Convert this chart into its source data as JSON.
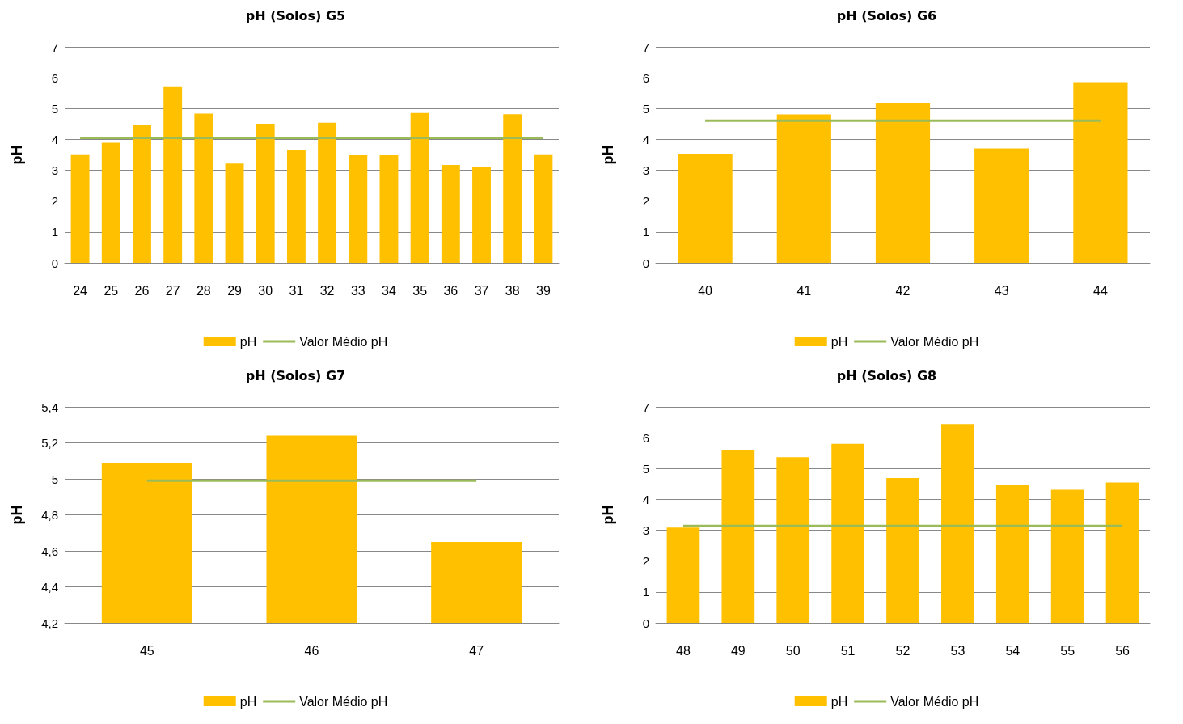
{
  "chart_data": [
    {
      "type": "bar",
      "title": "pH (Solos) G5",
      "ylabel": "pH",
      "categories": [
        "24",
        "25",
        "26",
        "27",
        "28",
        "29",
        "30",
        "31",
        "32",
        "33",
        "34",
        "35",
        "36",
        "37",
        "38",
        "39"
      ],
      "series": [
        {
          "name": "pH",
          "color": "#ffc000",
          "values": [
            3.52,
            3.89,
            4.47,
            5.72,
            4.84,
            3.22,
            4.51,
            3.66,
            4.54,
            3.49,
            3.49,
            4.86,
            3.17,
            3.1,
            4.82,
            3.52
          ]
        },
        {
          "name": "Valor Médio pH",
          "type": "line",
          "color": "#9bbb59",
          "values": [
            4.05,
            4.05,
            4.05,
            4.05,
            4.05,
            4.05,
            4.05,
            4.05,
            4.05,
            4.05,
            4.05,
            4.05,
            4.05,
            4.05,
            4.05,
            4.05
          ]
        }
      ],
      "ylim": [
        0,
        7
      ],
      "yticks": [
        0,
        1,
        2,
        3,
        4,
        5,
        6,
        7
      ],
      "grid": "y",
      "legend": "bottom",
      "marker": "none",
      "line_style": "solid"
    },
    {
      "type": "bar",
      "title": "pH (Solos) G6",
      "ylabel": "pH",
      "categories": [
        "40",
        "41",
        "42",
        "43",
        "44"
      ],
      "series": [
        {
          "name": "pH",
          "color": "#ffc000",
          "values": [
            3.54,
            4.81,
            5.19,
            3.71,
            5.86
          ]
        },
        {
          "name": "Valor Médio pH",
          "type": "line",
          "color": "#9bbb59",
          "values": [
            4.61,
            4.61,
            4.61,
            4.61,
            4.61
          ]
        }
      ],
      "ylim": [
        0,
        7
      ],
      "yticks": [
        0,
        1,
        2,
        3,
        4,
        5,
        6,
        7
      ],
      "grid": "y",
      "legend": "bottom",
      "marker": "none",
      "line_style": "solid"
    },
    {
      "type": "bar",
      "title": "pH (Solos) G7",
      "ylabel": "pH",
      "categories": [
        "45",
        "46",
        "47"
      ],
      "series": [
        {
          "name": "pH",
          "color": "#ffc000",
          "values": [
            5.09,
            5.24,
            4.65
          ]
        },
        {
          "name": "Valor Médio pH",
          "type": "line",
          "color": "#9bbb59",
          "values": [
            4.99,
            4.99,
            4.99
          ]
        }
      ],
      "ylim": [
        4.2,
        5.4
      ],
      "yticks": [
        {
          "value": 4.2,
          "label": "4,2"
        },
        {
          "value": 4.4,
          "label": "4,4"
        },
        {
          "value": 4.6,
          "label": "4,6"
        },
        {
          "value": 4.8,
          "label": "4,8"
        },
        {
          "value": 5,
          "label": "5"
        },
        {
          "value": 5.2,
          "label": "5,2"
        },
        {
          "value": 5.4,
          "label": "5,4"
        }
      ],
      "grid": "y",
      "legend": "bottom",
      "marker": "none",
      "line_style": "solid"
    },
    {
      "type": "bar",
      "title": "pH (Solos) G8",
      "ylabel": "pH",
      "categories": [
        "48",
        "49",
        "50",
        "51",
        "52",
        "53",
        "54",
        "55",
        "56"
      ],
      "series": [
        {
          "name": "pH",
          "color": "#ffc000",
          "values": [
            3.09,
            5.61,
            5.37,
            5.8,
            4.69,
            6.44,
            4.46,
            4.31,
            4.55
          ]
        },
        {
          "name": "Valor Médio pH",
          "type": "line",
          "color": "#9bbb59",
          "values": [
            3.14,
            3.14,
            3.14,
            3.14,
            3.14,
            3.14,
            3.14,
            3.14,
            3.14
          ]
        }
      ],
      "ylim": [
        0,
        7
      ],
      "yticks": [
        0,
        1,
        2,
        3,
        4,
        5,
        6,
        7
      ],
      "grid": "y",
      "legend": "bottom",
      "marker": "none",
      "line_style": "solid"
    }
  ]
}
